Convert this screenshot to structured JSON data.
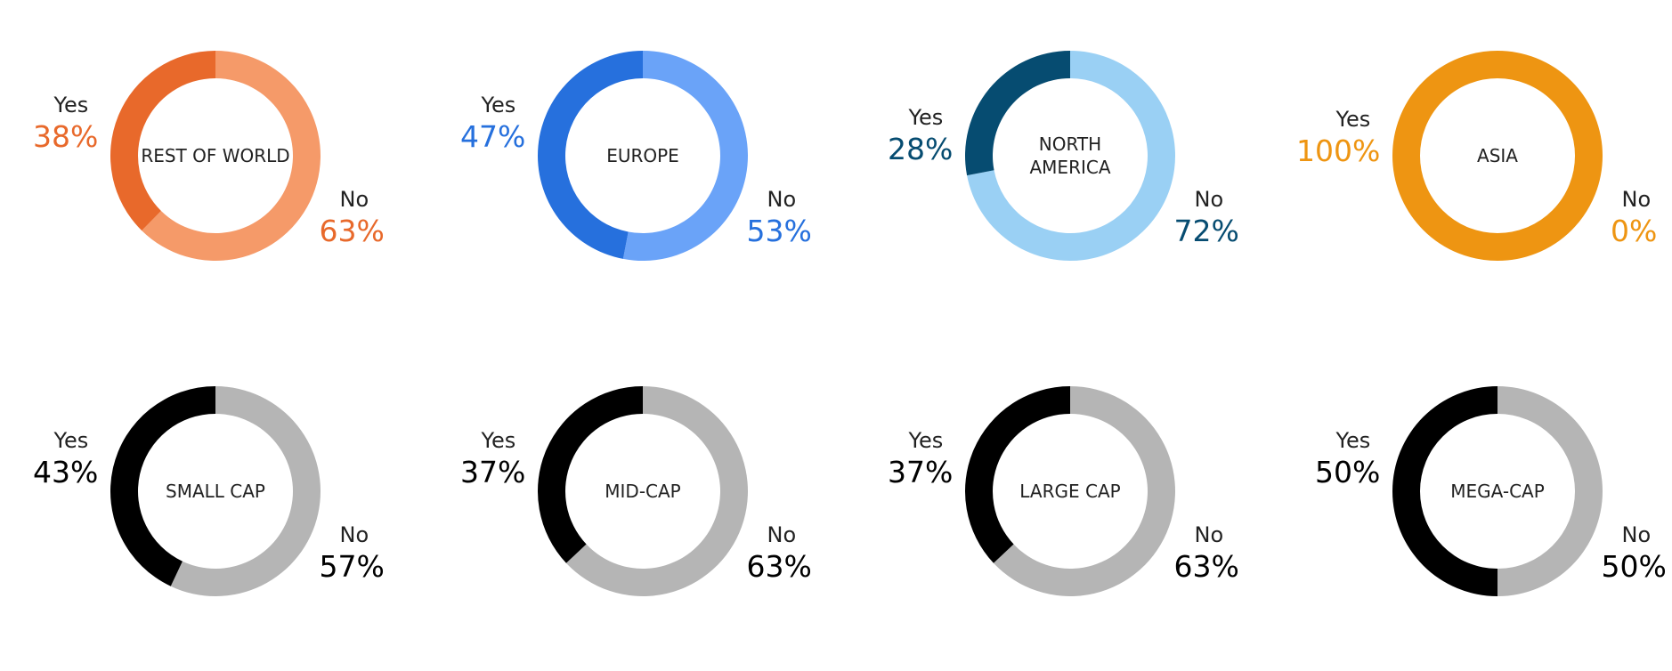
{
  "chart_data": [
    {
      "type": "pie",
      "title": "REST OF WORLD",
      "categories": [
        "Yes",
        "No"
      ],
      "values": [
        38,
        63
      ],
      "colors": [
        "#E8692B",
        "#F59A69"
      ],
      "label_color": "#E8692B",
      "value_labels": [
        "38%",
        "63%"
      ]
    },
    {
      "type": "pie",
      "title": "EUROPE",
      "categories": [
        "Yes",
        "No"
      ],
      "values": [
        47,
        53
      ],
      "colors": [
        "#2670DD",
        "#6AA3F8"
      ],
      "label_color": "#2670DD",
      "value_labels": [
        "47%",
        "53%"
      ]
    },
    {
      "type": "pie",
      "title": "NORTH\nAMERICA",
      "categories": [
        "Yes",
        "No"
      ],
      "values": [
        28,
        72
      ],
      "colors": [
        "#064C71",
        "#9AD0F4"
      ],
      "label_color": "#064C71",
      "value_labels": [
        "28%",
        "72%"
      ]
    },
    {
      "type": "pie",
      "title": "ASIA",
      "categories": [
        "Yes",
        "No"
      ],
      "values": [
        100,
        0
      ],
      "colors": [
        "#EE9512",
        "#F6C47A"
      ],
      "label_color": "#EE9512",
      "value_labels": [
        "100%",
        "0%"
      ]
    },
    {
      "type": "pie",
      "title": "SMALL CAP",
      "categories": [
        "Yes",
        "No"
      ],
      "values": [
        43,
        57
      ],
      "colors": [
        "#000000",
        "#B5B5B5"
      ],
      "label_color": "#000000",
      "value_labels": [
        "43%",
        "57%"
      ]
    },
    {
      "type": "pie",
      "title": "MID-CAP",
      "categories": [
        "Yes",
        "No"
      ],
      "values": [
        37,
        63
      ],
      "colors": [
        "#000000",
        "#B5B5B5"
      ],
      "label_color": "#000000",
      "value_labels": [
        "37%",
        "63%"
      ]
    },
    {
      "type": "pie",
      "title": "LARGE CAP",
      "categories": [
        "Yes",
        "No"
      ],
      "values": [
        37,
        63
      ],
      "colors": [
        "#000000",
        "#B5B5B5"
      ],
      "label_color": "#000000",
      "value_labels": [
        "37%",
        "63%"
      ]
    },
    {
      "type": "pie",
      "title": "MEGA-CAP",
      "categories": [
        "Yes",
        "No"
      ],
      "values": [
        50,
        50
      ],
      "colors": [
        "#000000",
        "#B5B5B5"
      ],
      "label_color": "#000000",
      "value_labels": [
        "50%",
        "50%"
      ]
    }
  ]
}
